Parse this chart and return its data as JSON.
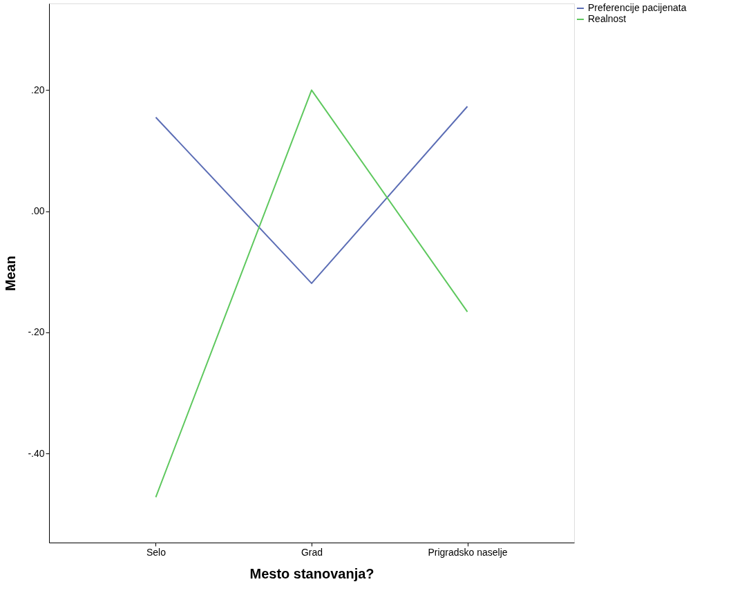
{
  "chart_data": {
    "type": "line",
    "xlabel": "Mesto stanovanja?",
    "ylabel": "Mean",
    "categories": [
      "Selo",
      "Grad",
      "Prigradsko naselje"
    ],
    "series": [
      {
        "name": "Preferencije pacijenata",
        "color": "#5b6db5",
        "values": [
          0.155,
          -0.119,
          0.173
        ]
      },
      {
        "name": "Realnost",
        "color": "#5ec85e",
        "values": [
          -0.472,
          0.2,
          -0.166
        ]
      }
    ],
    "ylim": [
      -0.547,
      0.343
    ],
    "yticks": [
      {
        "value": -0.4,
        "label": "-.40"
      },
      {
        "value": -0.2,
        "label": "-.20"
      },
      {
        "value": 0,
        "label": ".00"
      },
      {
        "value": 0.2,
        "label": ".20"
      }
    ],
    "grid": false,
    "legend": "top right",
    "marker": "none",
    "line_style": "solid"
  }
}
